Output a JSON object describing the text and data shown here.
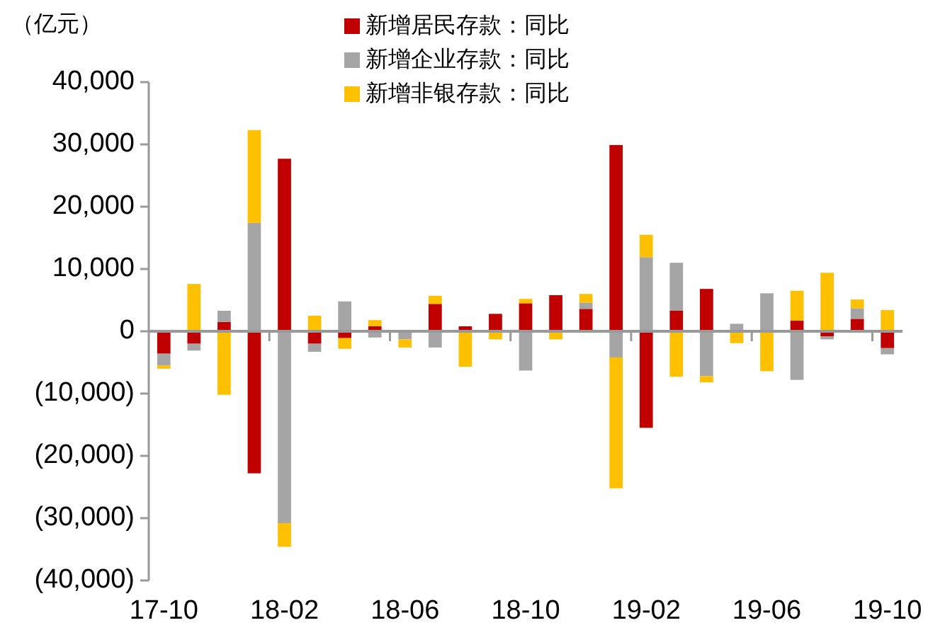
{
  "chart_data": {
    "type": "bar",
    "stacked": true,
    "ylabel": "（亿元）",
    "legend": "top",
    "categories": [
      "17-10",
      null,
      null,
      null,
      "18-02",
      null,
      null,
      null,
      "18-06",
      null,
      null,
      null,
      "18-10",
      null,
      null,
      null,
      "19-02",
      null,
      null,
      null,
      "19-06",
      null,
      null,
      null,
      "19-10"
    ],
    "ylim": [
      -40000,
      40000
    ],
    "yticks": [
      {
        "value": -40000,
        "label": "(40,000)"
      },
      {
        "value": -30000,
        "label": "(30,000)"
      },
      {
        "value": -20000,
        "label": "(20,000)"
      },
      {
        "value": -10000,
        "label": "(10,000)"
      },
      0,
      {
        "value": 10000,
        "label": "10,000"
      },
      {
        "value": 20000,
        "label": "20,000"
      },
      {
        "value": 30000,
        "label": "30,000"
      },
      {
        "value": 40000,
        "label": "40,000"
      }
    ],
    "series": [
      {
        "name": "新增居民存款：同比",
        "color": "#c00000",
        "values": [
          -3600,
          -2000,
          1500,
          -22800,
          27700,
          -2000,
          -1100,
          800,
          null,
          4400,
          800,
          2800,
          4500,
          5800,
          3600,
          29900,
          -15500,
          3300,
          6800,
          0,
          null,
          1700,
          -800,
          2000,
          -2700
        ]
      },
      {
        "name": "新增企业存款：同比",
        "color": "#a5a5a5",
        "values": [
          -1900,
          -1100,
          1800,
          17400,
          -30800,
          -1300,
          4800,
          -1000,
          -1300,
          -2600,
          null,
          null,
          -6300,
          null,
          1000,
          -4200,
          11900,
          7700,
          -7200,
          1200,
          6100,
          -7800,
          -500,
          1700,
          -1000
        ]
      },
      {
        "name": "新增非银存款：同比",
        "color": "#ffc000",
        "values": [
          -500,
          7600,
          -10200,
          14900,
          -3800,
          2500,
          -1700,
          1000,
          -1300,
          1300,
          -5700,
          -1300,
          700,
          -1300,
          1400,
          -21000,
          3600,
          -7300,
          -1000,
          -1900,
          -6400,
          4800,
          9400,
          1400,
          3400
        ]
      }
    ]
  }
}
